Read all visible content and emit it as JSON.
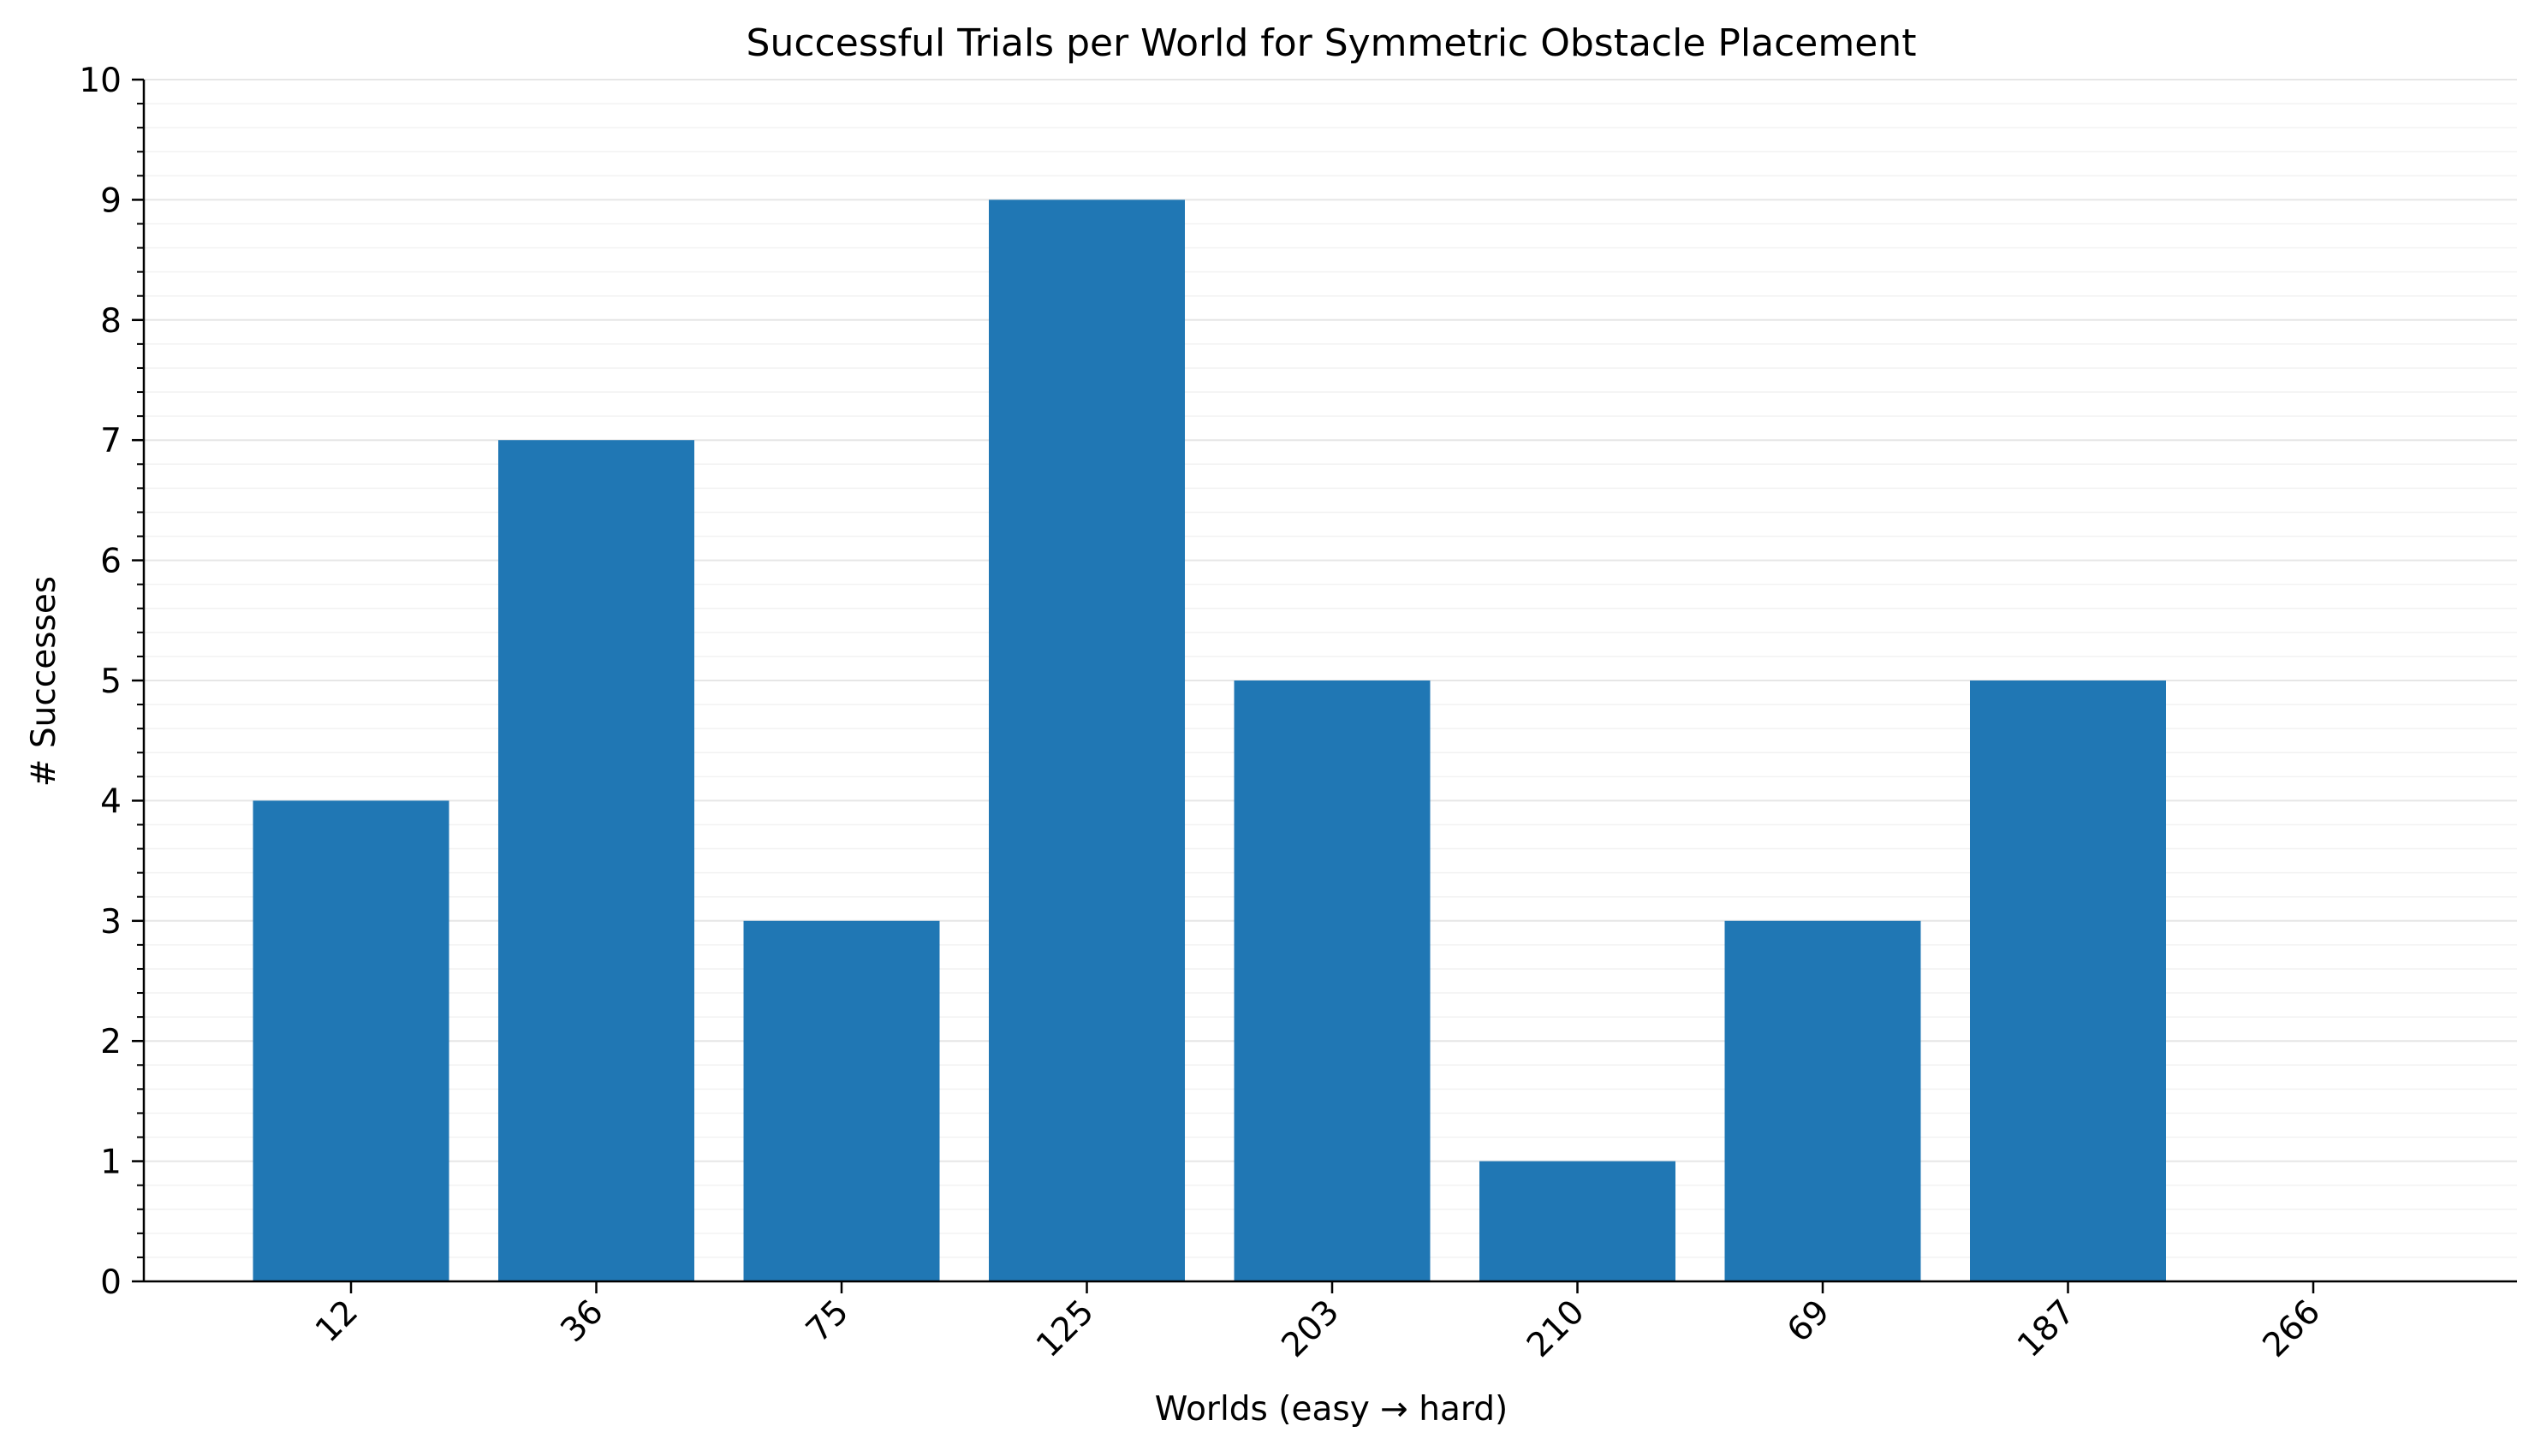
{
  "chart_data": {
    "type": "bar",
    "title": "Successful Trials per World for Symmetric Obstacle Placement",
    "xlabel": "Worlds (easy → hard)",
    "ylabel": "# Successes",
    "categories": [
      "12",
      "36",
      "75",
      "125",
      "203",
      "210",
      "69",
      "187",
      "266"
    ],
    "values": [
      4,
      7,
      3,
      9,
      5,
      1,
      3,
      5,
      0
    ],
    "ylim": [
      0,
      10
    ],
    "yticks": [
      "0",
      "1",
      "2",
      "3",
      "4",
      "5",
      "6",
      "7",
      "8",
      "9",
      "10"
    ],
    "y_minor_step": 0.2,
    "grid": true,
    "legend": "none",
    "bar_color": "#2077b4"
  }
}
